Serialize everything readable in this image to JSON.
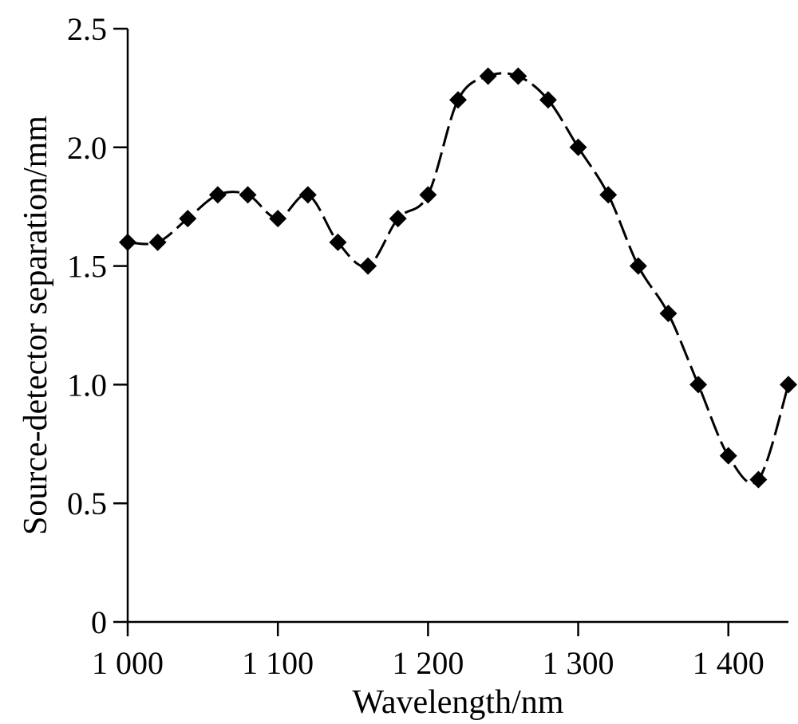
{
  "chart_data": {
    "type": "line",
    "title": "",
    "xlabel": "Wavelength/nm",
    "ylabel": "Source-detector separation/mm",
    "xlim": [
      1000,
      1440
    ],
    "ylim": [
      0,
      2.5
    ],
    "x_ticks": [
      1000,
      1100,
      1200,
      1300,
      1400
    ],
    "x_tick_labels": [
      "1 000",
      "1 100",
      "1 200",
      "1 300",
      "1 400"
    ],
    "y_ticks": [
      0,
      0.5,
      1.0,
      1.5,
      2.0,
      2.5
    ],
    "y_tick_labels": [
      "0",
      "0.5",
      "1.0",
      "1.5",
      "2.0",
      "2.5"
    ],
    "grid": false,
    "legend": "none",
    "series": [
      {
        "marker": "diamond",
        "line_style": "dashed",
        "color": "#000000",
        "x": [
          1000,
          1020,
          1040,
          1060,
          1080,
          1100,
          1120,
          1140,
          1160,
          1180,
          1200,
          1220,
          1240,
          1260,
          1280,
          1300,
          1320,
          1340,
          1360,
          1380,
          1400,
          1420,
          1440
        ],
        "y": [
          1.6,
          1.6,
          1.7,
          1.8,
          1.8,
          1.7,
          1.8,
          1.6,
          1.5,
          1.7,
          1.8,
          2.2,
          2.3,
          2.3,
          2.2,
          2.0,
          1.8,
          1.5,
          1.3,
          1.0,
          0.7,
          0.6,
          1.0
        ]
      }
    ]
  }
}
